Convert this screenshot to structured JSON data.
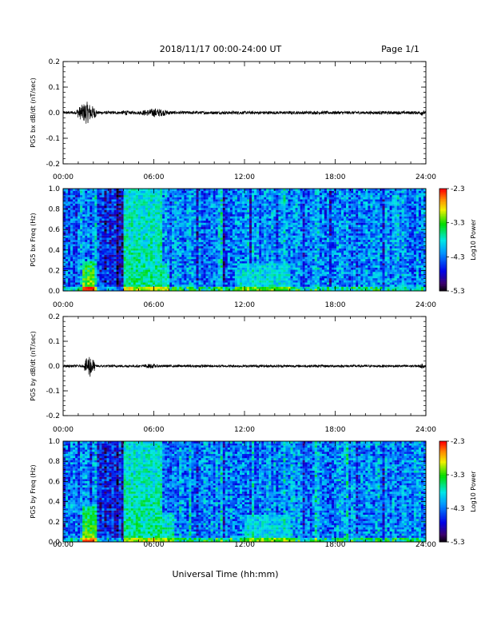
{
  "header": {
    "title": "2018/11/17  00:00-24:00 UT",
    "page": "Page 1/1"
  },
  "x_axis": {
    "label": "Universal Time (hh:mm)",
    "ticks": [
      "00:00",
      "06:00",
      "12:00",
      "18:00",
      "24:00"
    ],
    "range_hours": [
      0,
      24
    ]
  },
  "colorbar": {
    "label": "Log10 Power",
    "ticks": [
      "-2.3",
      "-3.3",
      "-4.3",
      "-5.3"
    ],
    "range": [
      -5.3,
      -2.3
    ]
  },
  "chart_data": [
    {
      "type": "line",
      "ylabel": "PG5 bx dB/dt (nT/sec)",
      "yticks": [
        "0.2",
        "0.1",
        "0.0",
        "-0.1",
        "-0.2"
      ],
      "ylim": [
        -0.2,
        0.2
      ],
      "xlim_hours": [
        0,
        24
      ],
      "activity_bursts": [
        {
          "start_h": 0.9,
          "end_h": 2.2,
          "amp": 0.045
        },
        {
          "start_h": 3.8,
          "end_h": 4.4,
          "amp": 0.012
        },
        {
          "start_h": 5.0,
          "end_h": 7.2,
          "amp": 0.018
        },
        {
          "start_h": 23.5,
          "end_h": 24.0,
          "amp": 0.012
        }
      ],
      "baseline_amp": 0.006
    },
    {
      "type": "heatmap",
      "ylabel": "PG5 bx Freq (Hz)",
      "yticks": [
        "1.0",
        "0.8",
        "0.6",
        "0.4",
        "0.2",
        "0.0"
      ],
      "ylim": [
        0.0,
        1.0
      ],
      "xlim_hours": [
        0,
        24
      ],
      "zlim": [
        -5.3,
        -2.3
      ],
      "background_level": -4.2,
      "enhancements": [
        {
          "start_h": 1.3,
          "end_h": 2.1,
          "fmax": 0.3,
          "level": -3.1
        },
        {
          "start_h": 4.0,
          "end_h": 6.6,
          "fmax": 1.0,
          "level": -3.6
        },
        {
          "start_h": 6.6,
          "end_h": 7.1,
          "fmax": 0.25,
          "level": -3.6
        },
        {
          "start_h": 11.5,
          "end_h": 15.0,
          "fmax": 0.27,
          "level": -3.8
        }
      ]
    },
    {
      "type": "line",
      "ylabel": "PG5 by dB/dt (nT/sec)",
      "yticks": [
        "0.2",
        "0.1",
        "0.0",
        "-0.1",
        "-0.2"
      ],
      "ylim": [
        -0.2,
        0.2
      ],
      "xlim_hours": [
        0,
        24
      ],
      "activity_bursts": [
        {
          "start_h": 1.4,
          "end_h": 2.1,
          "amp": 0.05
        },
        {
          "start_h": 5.0,
          "end_h": 6.5,
          "amp": 0.01
        },
        {
          "start_h": 23.5,
          "end_h": 24.0,
          "amp": 0.01
        }
      ],
      "baseline_amp": 0.005
    },
    {
      "type": "heatmap",
      "ylabel": "PG5 by Freq (Hz)",
      "yticks": [
        "1.0",
        "0.8",
        "0.6",
        "0.4",
        "0.2",
        "0.0"
      ],
      "ylim": [
        0.0,
        1.0
      ],
      "xlim_hours": [
        0,
        24
      ],
      "zlim": [
        -5.3,
        -2.3
      ],
      "background_level": -4.2,
      "enhancements": [
        {
          "start_h": 1.3,
          "end_h": 2.2,
          "fmax": 0.35,
          "level": -3.2
        },
        {
          "start_h": 4.0,
          "end_h": 6.6,
          "fmax": 1.0,
          "level": -3.6
        },
        {
          "start_h": 6.6,
          "end_h": 7.4,
          "fmax": 0.3,
          "level": -3.6
        },
        {
          "start_h": 12.0,
          "end_h": 15.0,
          "fmax": 0.27,
          "level": -3.8
        }
      ]
    }
  ]
}
